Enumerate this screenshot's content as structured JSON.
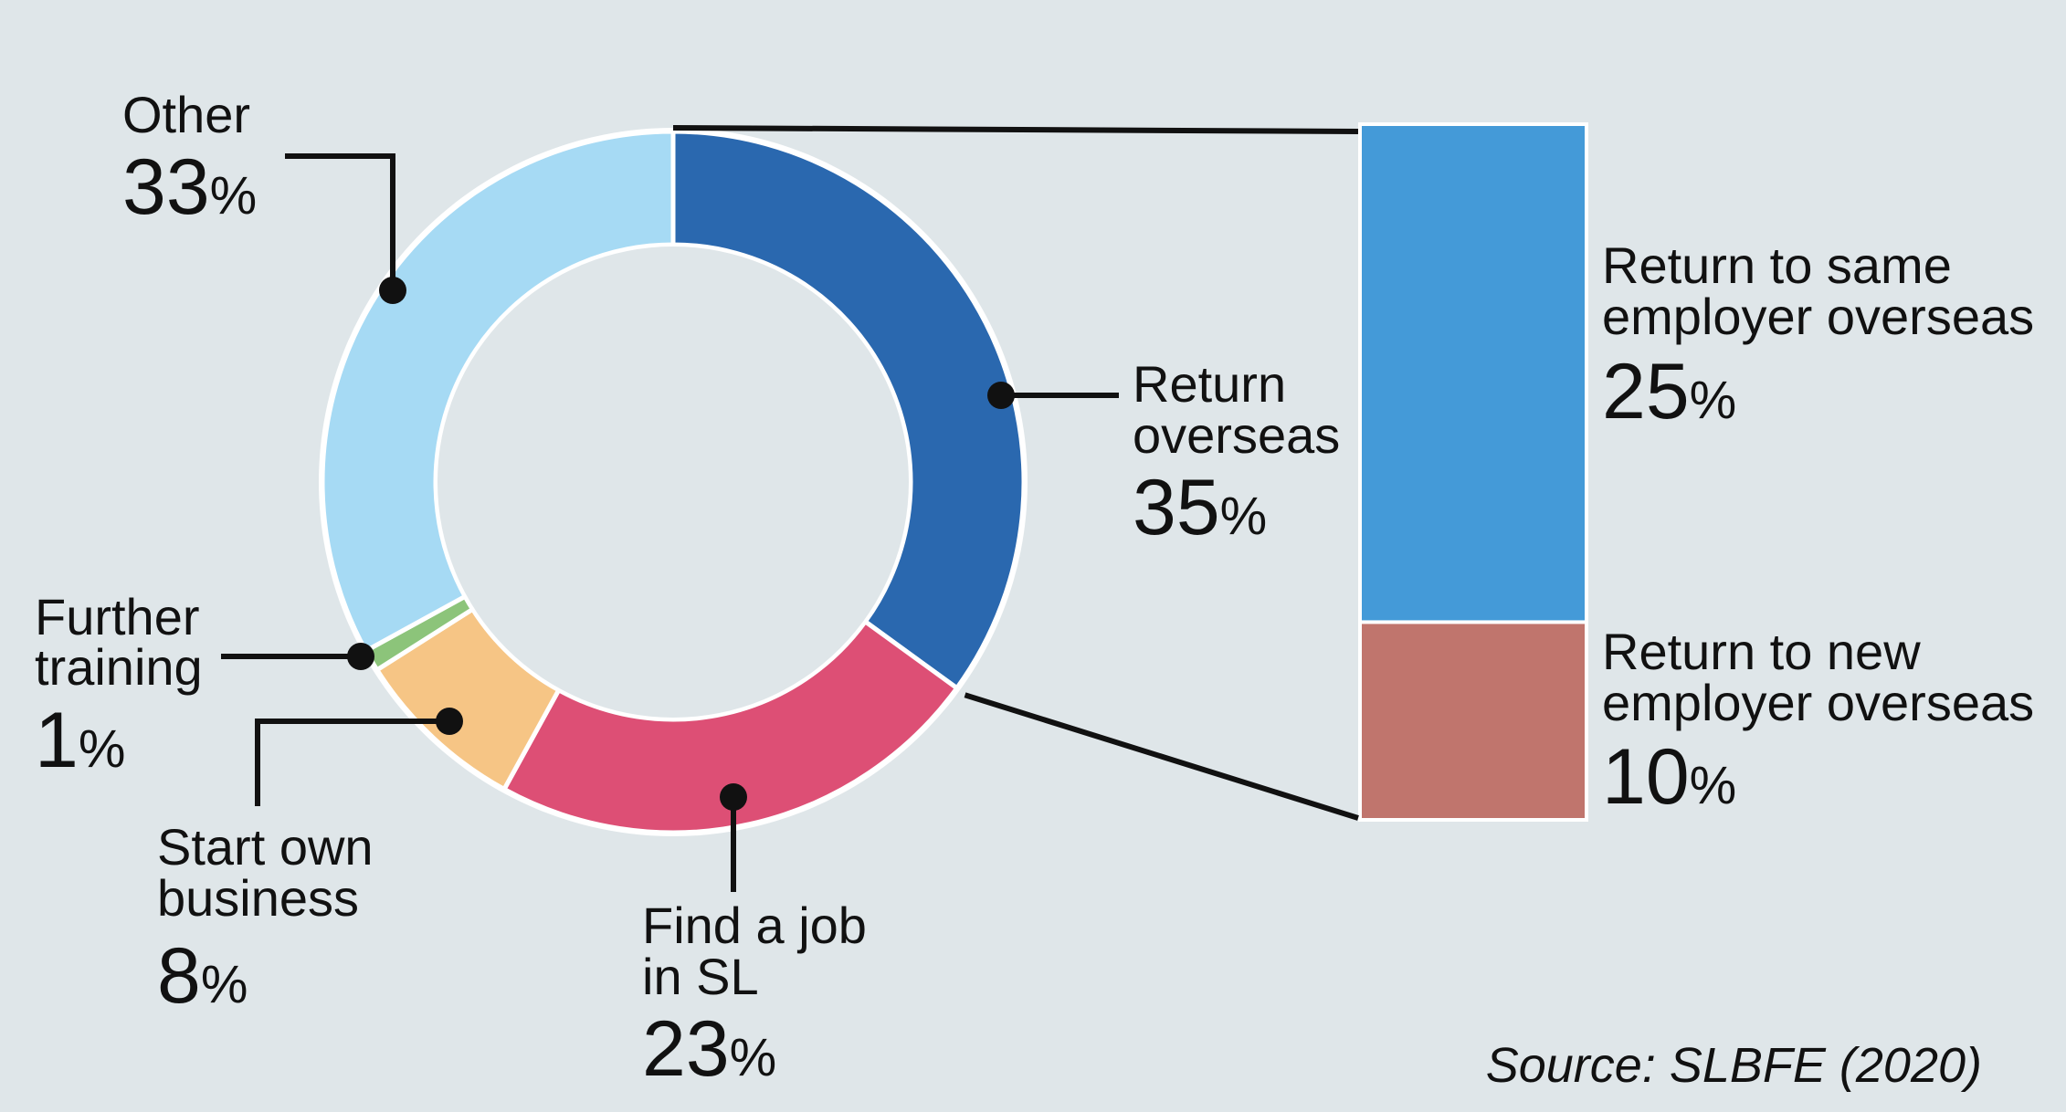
{
  "chart_data": [
    {
      "type": "pie",
      "variant": "donut",
      "slices": [
        {
          "key": "return_overseas",
          "label_lines": [
            "Return",
            "overseas"
          ],
          "value": 35,
          "pct_text": "35",
          "pct_sign": "%",
          "color": "#2a68af"
        },
        {
          "key": "find_job",
          "label_lines": [
            "Find a job",
            "in SL"
          ],
          "value": 23,
          "pct_text": "23",
          "pct_sign": "%",
          "color": "#dd4f75"
        },
        {
          "key": "start_business",
          "label_lines": [
            "Start own",
            "business"
          ],
          "value": 8,
          "pct_text": "8",
          "pct_sign": "%",
          "color": "#f6c585"
        },
        {
          "key": "further_training",
          "label_lines": [
            "Further",
            "training"
          ],
          "value": 1,
          "pct_text": "1",
          "pct_sign": "%",
          "color": "#8cc47a"
        },
        {
          "key": "other",
          "label_lines": [
            "Other"
          ],
          "value": 33,
          "pct_text": "33",
          "pct_sign": "%",
          "color": "#a6daf4"
        }
      ]
    },
    {
      "type": "bar",
      "variant": "stacked-breakdown",
      "breakdown_of": "return_overseas",
      "segments": [
        {
          "key": "same_employer",
          "label_lines": [
            "Return to same",
            "employer overseas"
          ],
          "value": 25,
          "pct_text": "25",
          "pct_sign": "%",
          "color": "#449ad8"
        },
        {
          "key": "new_employer",
          "label_lines": [
            "Return to new",
            "employer overseas"
          ],
          "value": 10,
          "pct_text": "10",
          "pct_sign": "%",
          "color": "#c0756d"
        }
      ]
    }
  ],
  "source": "Source: SLBFE (2020)",
  "colors": {
    "background": "#dfe6e9",
    "text": "#111111",
    "separator": "#ffffff"
  }
}
